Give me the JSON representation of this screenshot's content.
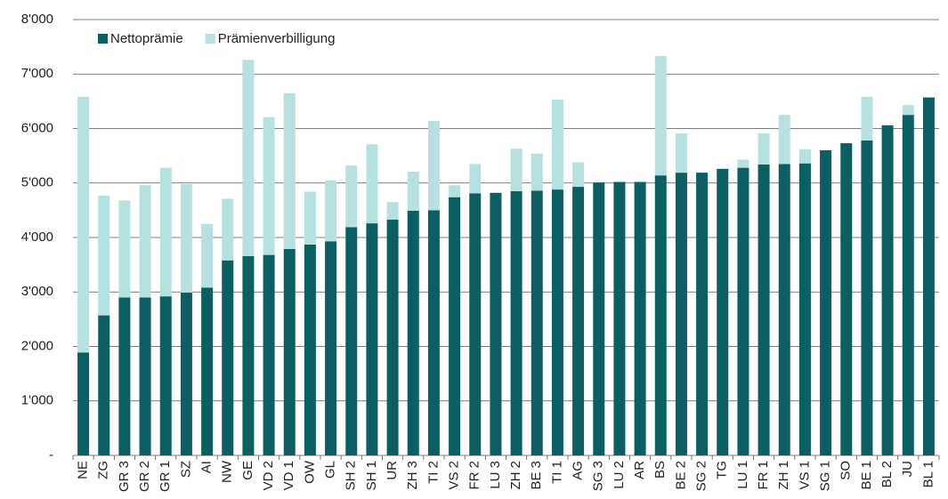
{
  "chart_data": {
    "type": "bar",
    "stacked": true,
    "categories": [
      "NE",
      "ZG",
      "GR 3",
      "GR 2",
      "GR 1",
      "SZ",
      "AI",
      "NW",
      "GE",
      "VD 2",
      "VD 1",
      "OW",
      "GL",
      "SH 2",
      "SH 1",
      "UR",
      "ZH 3",
      "TI 2",
      "VS 2",
      "FR 2",
      "LU 3",
      "ZH 2",
      "BE 3",
      "TI 1",
      "AG",
      "SG 3",
      "LU 2",
      "AR",
      "BS",
      "BE 2",
      "SG 2",
      "TG",
      "LU 1",
      "FR 1",
      "ZH 1",
      "VS 1",
      "SG 1",
      "SO",
      "BE 1",
      "BL 2",
      "JU",
      "BL 1"
    ],
    "series": [
      {
        "name": "Nettoprämie",
        "color": "#0b5f63",
        "values": [
          1890,
          2570,
          2900,
          2900,
          2920,
          2990,
          3080,
          3580,
          3660,
          3680,
          3790,
          3870,
          3930,
          4190,
          4260,
          4330,
          4490,
          4500,
          4740,
          4810,
          4820,
          4850,
          4860,
          4880,
          4930,
          5010,
          5020,
          5020,
          5140,
          5190,
          5190,
          5260,
          5280,
          5340,
          5350,
          5360,
          5600,
          5730,
          5780,
          6060,
          6250,
          6570
        ]
      },
      {
        "name": "Prämienverbilligung",
        "color": "#b7e1e0",
        "values": [
          4690,
          2200,
          1780,
          2060,
          2360,
          1990,
          1170,
          1130,
          3600,
          2530,
          2860,
          970,
          1120,
          1130,
          1450,
          320,
          720,
          1640,
          220,
          540,
          0,
          780,
          680,
          1650,
          450,
          0,
          0,
          0,
          2190,
          720,
          0,
          0,
          150,
          570,
          900,
          260,
          0,
          0,
          800,
          0,
          180,
          0
        ]
      }
    ],
    "ylim": [
      0,
      8000
    ],
    "yticks": [
      {
        "value": 0,
        "label": "-"
      },
      {
        "value": 1000,
        "label": "1'000"
      },
      {
        "value": 2000,
        "label": "2'000"
      },
      {
        "value": 3000,
        "label": "3'000"
      },
      {
        "value": 4000,
        "label": "4'000"
      },
      {
        "value": 5000,
        "label": "5'000"
      },
      {
        "value": 6000,
        "label": "6'000"
      },
      {
        "value": 7000,
        "label": "7'000"
      },
      {
        "value": 8000,
        "label": "8'000"
      }
    ],
    "grid": true,
    "legend": "top-left"
  }
}
